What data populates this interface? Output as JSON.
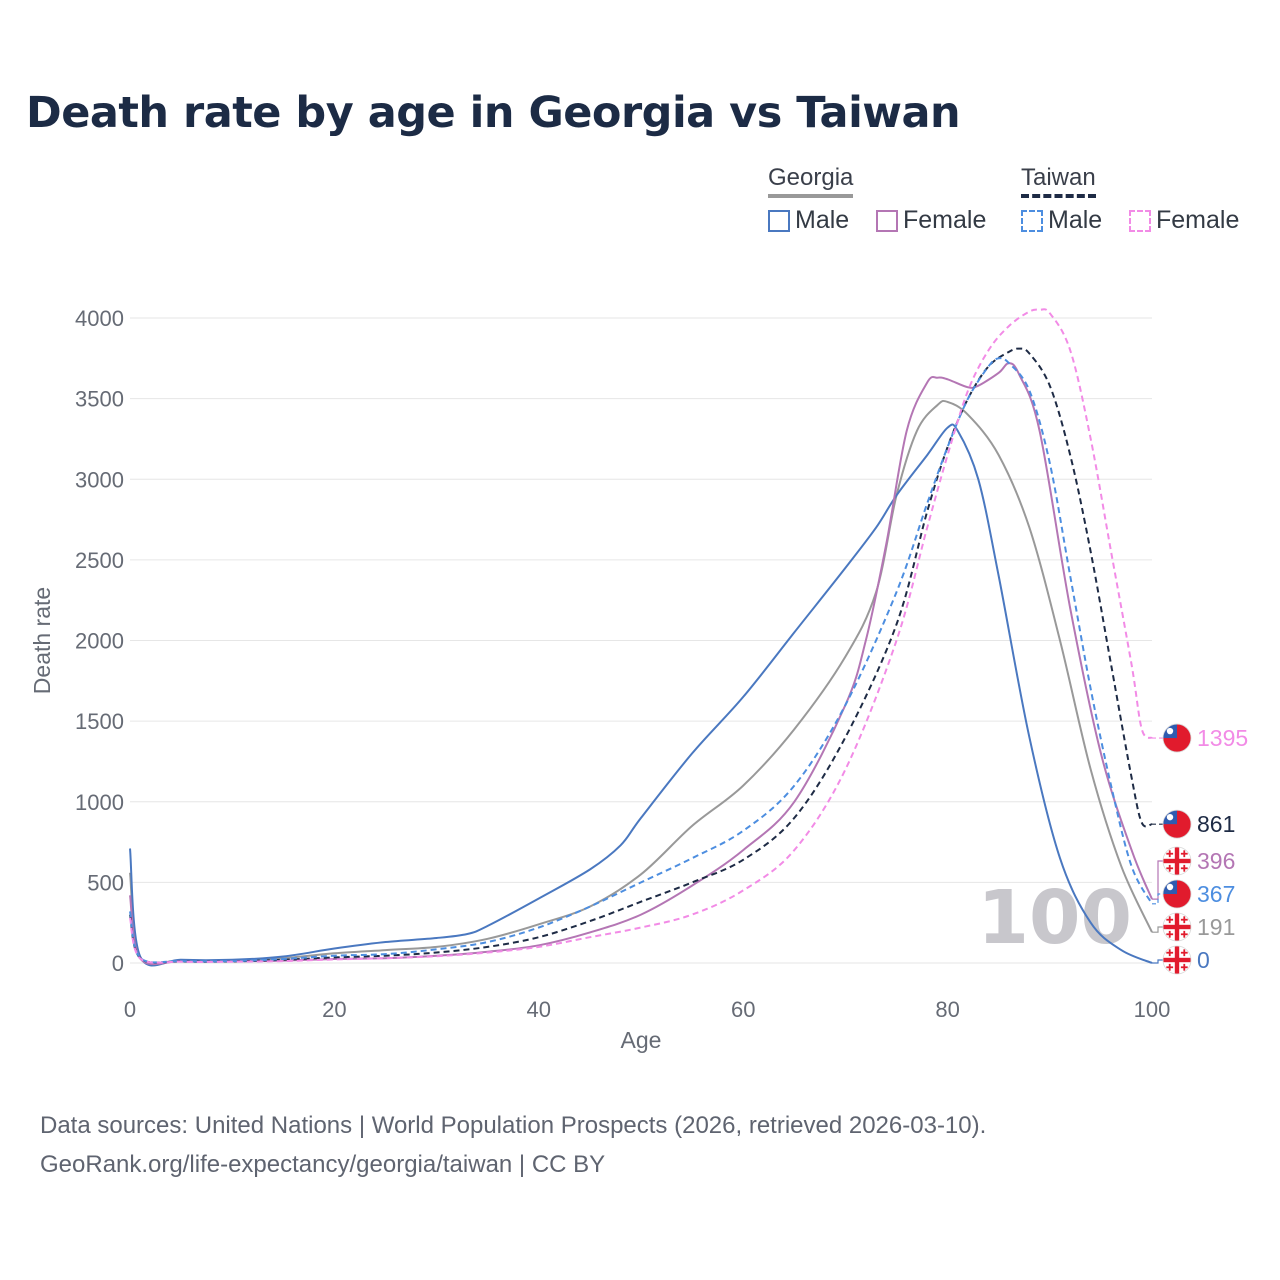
{
  "title": "Death rate by age in Georgia vs Taiwan",
  "legend": {
    "groups": [
      {
        "name": "Georgia",
        "items": [
          "Male",
          "Female"
        ]
      },
      {
        "name": "Taiwan",
        "items": [
          "Male",
          "Female"
        ]
      }
    ]
  },
  "footer": {
    "line1": "Data sources: United Nations | World Population Prospects (2026, retrieved 2026-03-10).",
    "line2": "GeoRank.org/life-expectancy/georgia/taiwan | CC BY"
  },
  "chart_data": {
    "type": "line",
    "title": "Death rate by age in Georgia vs Taiwan",
    "xlabel": "Age",
    "ylabel": "Death rate",
    "xlim": [
      0,
      100
    ],
    "ylim": [
      0,
      4000
    ],
    "xticks": [
      0,
      20,
      40,
      60,
      80,
      100
    ],
    "yticks": [
      0,
      500,
      1000,
      1500,
      2000,
      2500,
      3000,
      3500,
      4000
    ],
    "age_watermark": "100",
    "series": [
      {
        "id": "geo_total",
        "name": "Georgia",
        "color": "#999999",
        "dash": false,
        "flag": "georgia",
        "end_label": "191",
        "points": [
          [
            0,
            560
          ],
          [
            1,
            35
          ],
          [
            5,
            15
          ],
          [
            10,
            15
          ],
          [
            15,
            30
          ],
          [
            20,
            60
          ],
          [
            25,
            80
          ],
          [
            30,
            100
          ],
          [
            35,
            150
          ],
          [
            40,
            240
          ],
          [
            45,
            350
          ],
          [
            50,
            550
          ],
          [
            55,
            850
          ],
          [
            60,
            1100
          ],
          [
            65,
            1450
          ],
          [
            70,
            1900
          ],
          [
            73,
            2300
          ],
          [
            75,
            2900
          ],
          [
            77,
            3300
          ],
          [
            79,
            3460
          ],
          [
            80,
            3480
          ],
          [
            82,
            3400
          ],
          [
            85,
            3150
          ],
          [
            88,
            2700
          ],
          [
            91,
            2000
          ],
          [
            94,
            1200
          ],
          [
            97,
            600
          ],
          [
            100,
            191
          ]
        ]
      },
      {
        "id": "geo_male",
        "name": "Georgia Male",
        "color": "#4a78c0",
        "dash": false,
        "flag": "georgia",
        "end_label": "0",
        "points": [
          [
            0,
            710
          ],
          [
            1,
            40
          ],
          [
            5,
            20
          ],
          [
            10,
            20
          ],
          [
            15,
            40
          ],
          [
            20,
            90
          ],
          [
            25,
            130
          ],
          [
            30,
            155
          ],
          [
            33,
            180
          ],
          [
            35,
            230
          ],
          [
            40,
            400
          ],
          [
            45,
            580
          ],
          [
            48,
            730
          ],
          [
            50,
            900
          ],
          [
            55,
            1300
          ],
          [
            60,
            1650
          ],
          [
            65,
            2050
          ],
          [
            70,
            2450
          ],
          [
            73,
            2700
          ],
          [
            75,
            2900
          ],
          [
            78,
            3150
          ],
          [
            80,
            3320
          ],
          [
            81,
            3300
          ],
          [
            83,
            3000
          ],
          [
            85,
            2400
          ],
          [
            88,
            1400
          ],
          [
            91,
            650
          ],
          [
            94,
            250
          ],
          [
            97,
            80
          ],
          [
            100,
            0
          ]
        ]
      },
      {
        "id": "geo_female",
        "name": "Georgia Female",
        "color": "#b476b4",
        "dash": false,
        "flag": "georgia",
        "end_label": "396",
        "points": [
          [
            0,
            420
          ],
          [
            1,
            28
          ],
          [
            5,
            10
          ],
          [
            10,
            10
          ],
          [
            15,
            15
          ],
          [
            20,
            25
          ],
          [
            25,
            30
          ],
          [
            30,
            45
          ],
          [
            35,
            70
          ],
          [
            40,
            110
          ],
          [
            45,
            190
          ],
          [
            50,
            300
          ],
          [
            55,
            480
          ],
          [
            60,
            700
          ],
          [
            65,
            1000
          ],
          [
            70,
            1600
          ],
          [
            72,
            2000
          ],
          [
            74,
            2600
          ],
          [
            76,
            3300
          ],
          [
            78,
            3600
          ],
          [
            79,
            3630
          ],
          [
            80,
            3620
          ],
          [
            82,
            3570
          ],
          [
            83,
            3580
          ],
          [
            85,
            3660
          ],
          [
            86,
            3720
          ],
          [
            87,
            3650
          ],
          [
            89,
            3300
          ],
          [
            92,
            2200
          ],
          [
            95,
            1300
          ],
          [
            98,
            700
          ],
          [
            100,
            396
          ]
        ]
      },
      {
        "id": "tw_total",
        "name": "Taiwan",
        "color": "#1e2b45",
        "dash": true,
        "flag": "taiwan",
        "end_label": "861",
        "points": [
          [
            0,
            300
          ],
          [
            1,
            30
          ],
          [
            5,
            10
          ],
          [
            10,
            10
          ],
          [
            15,
            20
          ],
          [
            20,
            35
          ],
          [
            25,
            45
          ],
          [
            30,
            65
          ],
          [
            35,
            100
          ],
          [
            40,
            160
          ],
          [
            45,
            260
          ],
          [
            50,
            380
          ],
          [
            55,
            500
          ],
          [
            60,
            640
          ],
          [
            65,
            900
          ],
          [
            70,
            1400
          ],
          [
            75,
            2100
          ],
          [
            78,
            2800
          ],
          [
            80,
            3200
          ],
          [
            82,
            3500
          ],
          [
            84,
            3700
          ],
          [
            86,
            3790
          ],
          [
            87,
            3810
          ],
          [
            88,
            3780
          ],
          [
            90,
            3580
          ],
          [
            92,
            3150
          ],
          [
            94,
            2550
          ],
          [
            96,
            1850
          ],
          [
            98,
            1150
          ],
          [
            99,
            870
          ],
          [
            100,
            861
          ]
        ]
      },
      {
        "id": "tw_male",
        "name": "Taiwan Male",
        "color": "#4d8ee0",
        "dash": true,
        "flag": "taiwan",
        "end_label": "367",
        "points": [
          [
            0,
            320
          ],
          [
            1,
            32
          ],
          [
            5,
            12
          ],
          [
            10,
            12
          ],
          [
            15,
            25
          ],
          [
            20,
            45
          ],
          [
            25,
            55
          ],
          [
            30,
            85
          ],
          [
            35,
            130
          ],
          [
            40,
            220
          ],
          [
            45,
            350
          ],
          [
            50,
            500
          ],
          [
            55,
            650
          ],
          [
            60,
            820
          ],
          [
            65,
            1100
          ],
          [
            70,
            1600
          ],
          [
            75,
            2300
          ],
          [
            78,
            2850
          ],
          [
            80,
            3200
          ],
          [
            82,
            3500
          ],
          [
            84,
            3700
          ],
          [
            85,
            3750
          ],
          [
            86,
            3720
          ],
          [
            88,
            3550
          ],
          [
            90,
            3100
          ],
          [
            92,
            2400
          ],
          [
            94,
            1700
          ],
          [
            96,
            1100
          ],
          [
            98,
            600
          ],
          [
            100,
            367
          ]
        ]
      },
      {
        "id": "tw_female",
        "name": "Taiwan Female",
        "color": "#f28be6",
        "dash": true,
        "flag": "taiwan",
        "end_label": "1395",
        "points": [
          [
            0,
            280
          ],
          [
            1,
            28
          ],
          [
            5,
            8
          ],
          [
            10,
            8
          ],
          [
            15,
            12
          ],
          [
            20,
            22
          ],
          [
            25,
            30
          ],
          [
            30,
            42
          ],
          [
            35,
            65
          ],
          [
            40,
            100
          ],
          [
            45,
            160
          ],
          [
            50,
            220
          ],
          [
            55,
            300
          ],
          [
            60,
            450
          ],
          [
            65,
            700
          ],
          [
            70,
            1200
          ],
          [
            75,
            2000
          ],
          [
            78,
            2700
          ],
          [
            80,
            3150
          ],
          [
            82,
            3550
          ],
          [
            84,
            3800
          ],
          [
            86,
            3950
          ],
          [
            88,
            4040
          ],
          [
            89,
            4050
          ],
          [
            90,
            4030
          ],
          [
            92,
            3800
          ],
          [
            94,
            3250
          ],
          [
            96,
            2550
          ],
          [
            98,
            1850
          ],
          [
            99,
            1450
          ],
          [
            100,
            1395
          ]
        ]
      }
    ]
  }
}
